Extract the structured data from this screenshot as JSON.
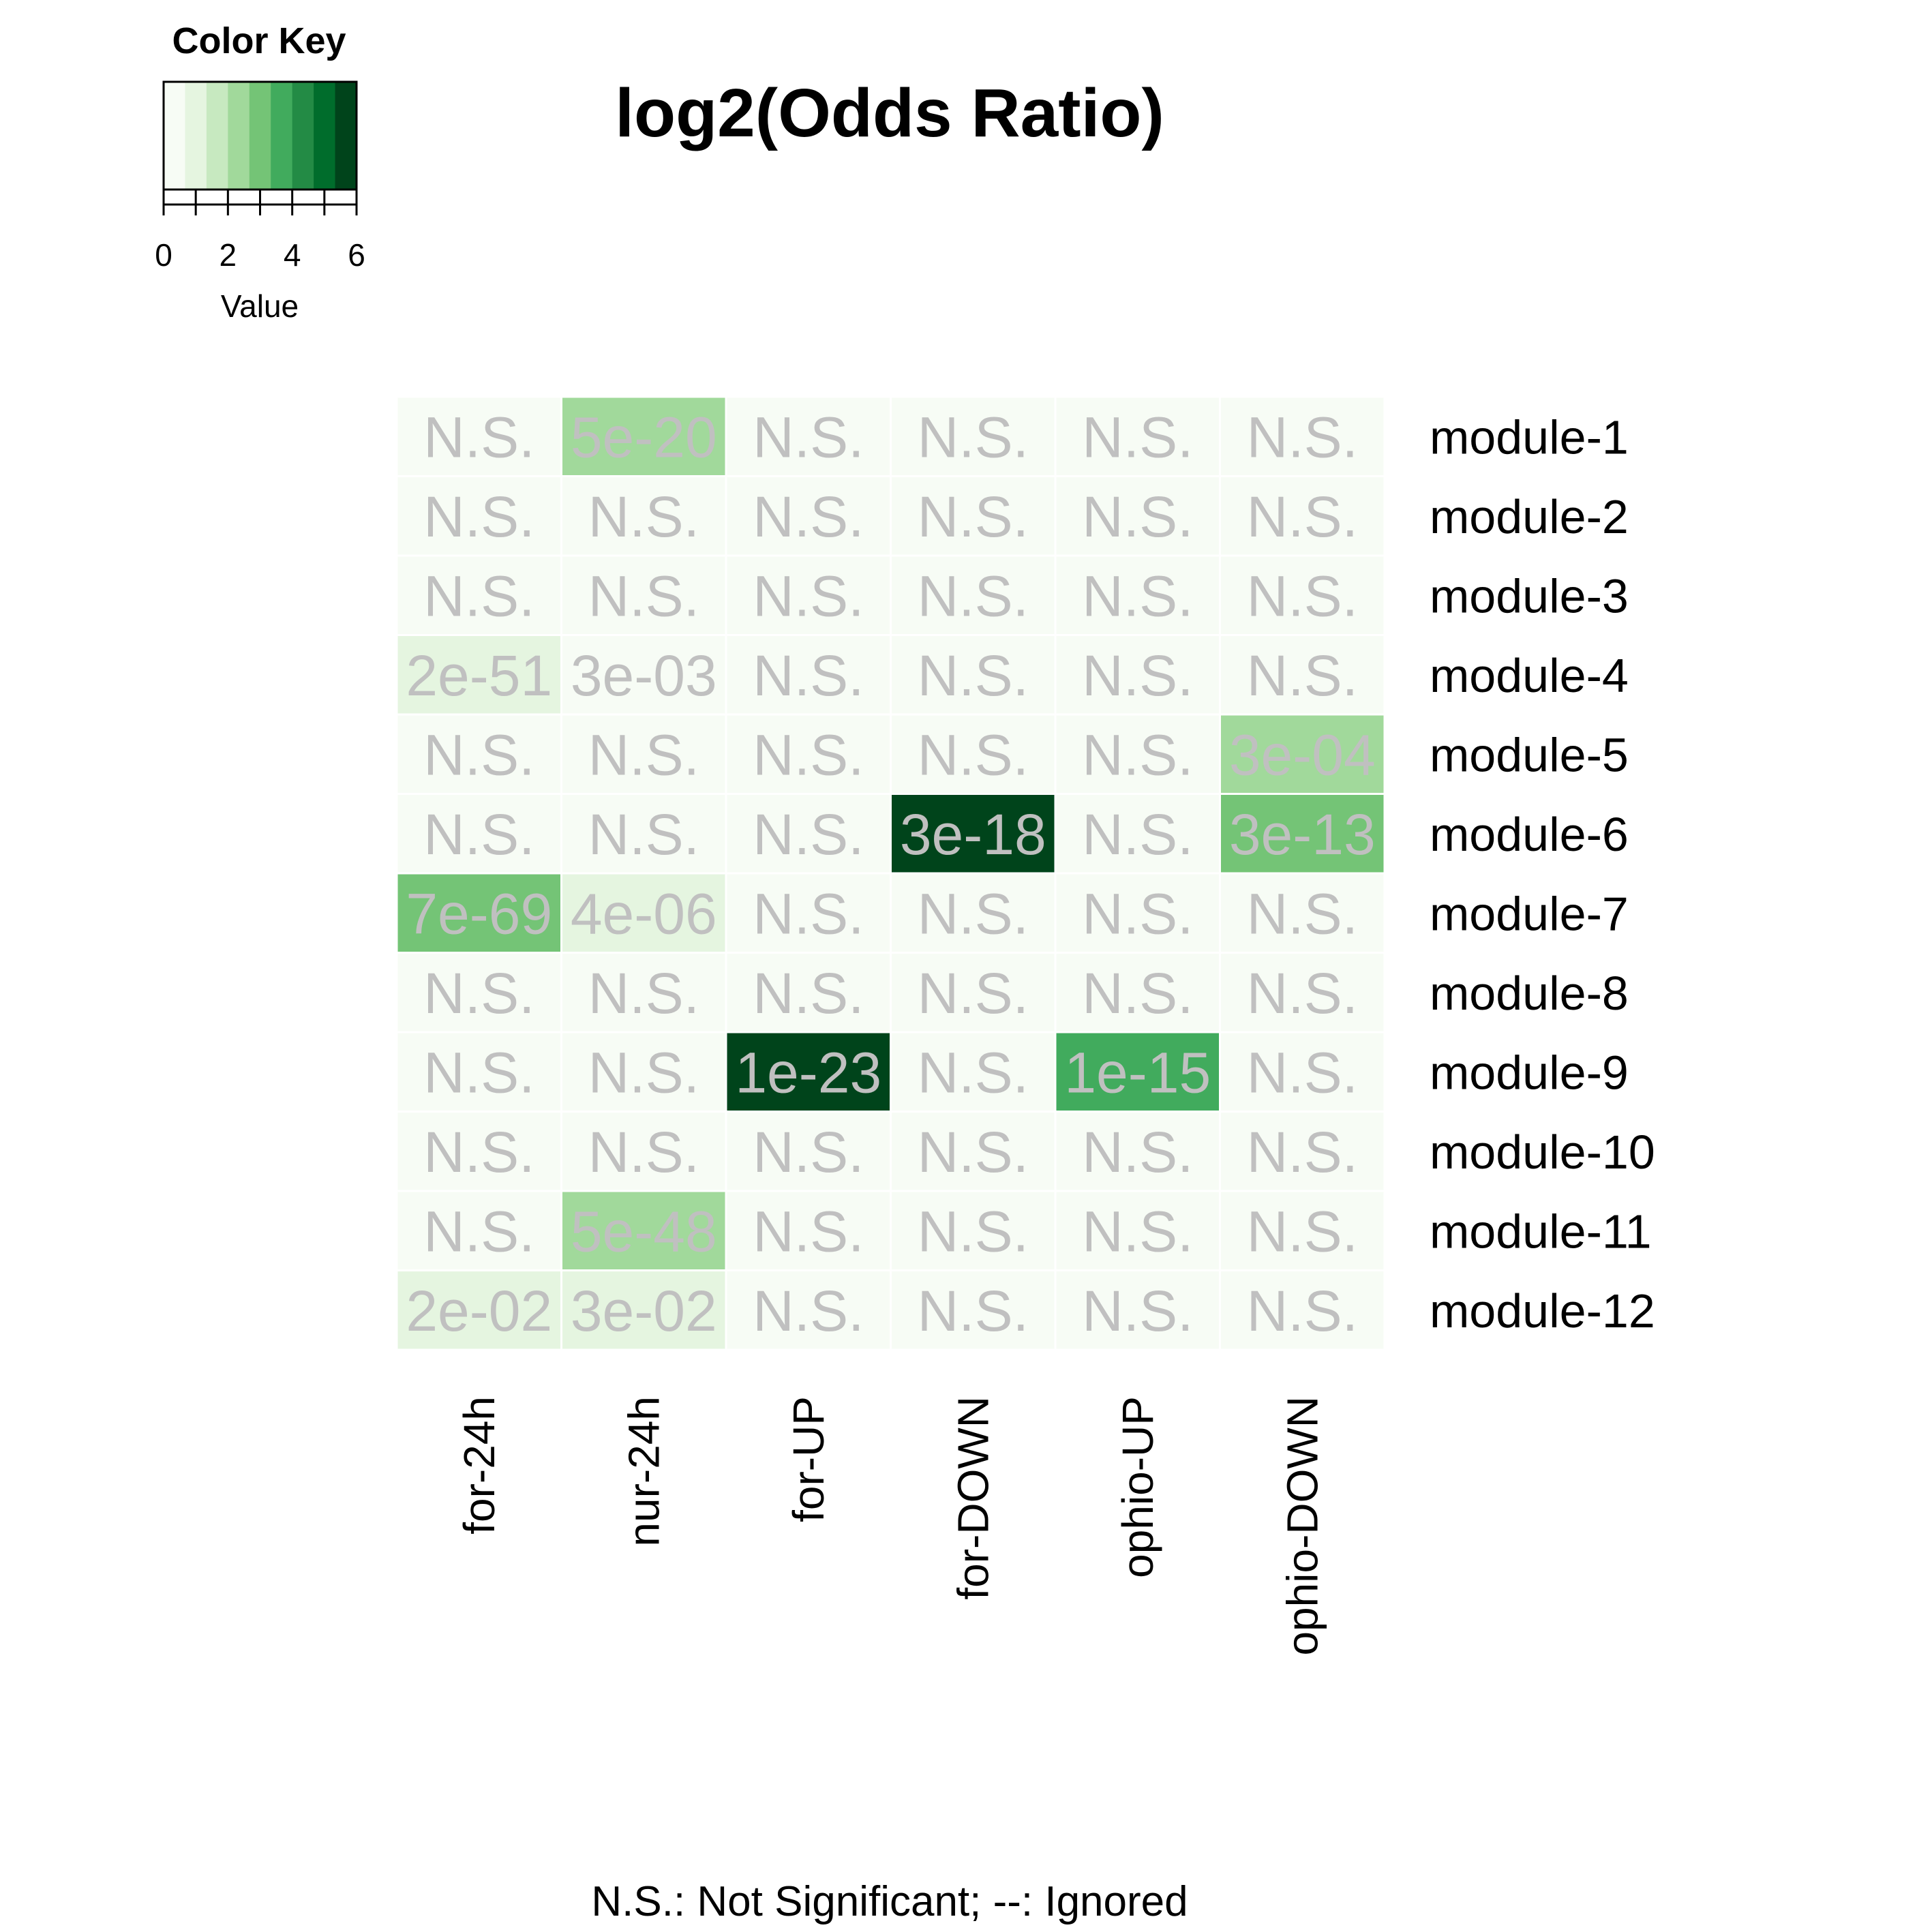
{
  "color_key": {
    "title": "Color Key",
    "axis_label": "Value",
    "ticks": [
      0,
      2,
      4,
      6
    ],
    "range": [
      0,
      6
    ],
    "colors": [
      "#f7fcf5",
      "#e5f5e0",
      "#c7e9c0",
      "#a1d99b",
      "#74c476",
      "#41ab5d",
      "#238b45",
      "#006d2c",
      "#00441b"
    ]
  },
  "chart_data": {
    "type": "heatmap",
    "title": "log2(Odds Ratio)",
    "columns": [
      "for-24h",
      "nur-24h",
      "for-UP",
      "for-DOWN",
      "ophio-UP",
      "ophio-DOWN"
    ],
    "rows": [
      "module-1",
      "module-2",
      "module-3",
      "module-4",
      "module-5",
      "module-6",
      "module-7",
      "module-8",
      "module-9",
      "module-10",
      "module-11",
      "module-12"
    ],
    "values": [
      [
        0.0,
        2.1,
        0.0,
        0.0,
        0.0,
        0.0
      ],
      [
        0.0,
        0.0,
        0.0,
        0.0,
        0.0,
        0.0
      ],
      [
        0.0,
        0.0,
        0.0,
        0.0,
        0.0,
        0.0
      ],
      [
        1.0,
        0.2,
        0.0,
        0.0,
        0.0,
        0.0
      ],
      [
        0.0,
        0.0,
        0.0,
        0.0,
        0.0,
        2.1
      ],
      [
        0.0,
        0.0,
        0.0,
        5.5,
        0.0,
        2.8
      ],
      [
        2.8,
        1.0,
        0.0,
        0.0,
        0.0,
        0.0
      ],
      [
        0.0,
        0.0,
        0.0,
        0.0,
        0.0,
        0.0
      ],
      [
        0.0,
        0.0,
        6.0,
        0.0,
        3.6,
        0.0
      ],
      [
        0.0,
        0.0,
        0.0,
        0.0,
        0.0,
        0.0
      ],
      [
        0.0,
        2.1,
        0.0,
        0.0,
        0.0,
        0.0
      ],
      [
        1.0,
        1.0,
        0.0,
        0.0,
        0.0,
        0.0
      ]
    ],
    "cell_labels": [
      [
        "N.S.",
        "5e-20",
        "N.S.",
        "N.S.",
        "N.S.",
        "N.S."
      ],
      [
        "N.S.",
        "N.S.",
        "N.S.",
        "N.S.",
        "N.S.",
        "N.S."
      ],
      [
        "N.S.",
        "N.S.",
        "N.S.",
        "N.S.",
        "N.S.",
        "N.S."
      ],
      [
        "2e-51",
        "3e-03",
        "N.S.",
        "N.S.",
        "N.S.",
        "N.S."
      ],
      [
        "N.S.",
        "N.S.",
        "N.S.",
        "N.S.",
        "N.S.",
        "3e-04"
      ],
      [
        "N.S.",
        "N.S.",
        "N.S.",
        "3e-18",
        "N.S.",
        "3e-13"
      ],
      [
        "7e-69",
        "4e-06",
        "N.S.",
        "N.S.",
        "N.S.",
        "N.S."
      ],
      [
        "N.S.",
        "N.S.",
        "N.S.",
        "N.S.",
        "N.S.",
        "N.S."
      ],
      [
        "N.S.",
        "N.S.",
        "1e-23",
        "N.S.",
        "1e-15",
        "N.S."
      ],
      [
        "N.S.",
        "N.S.",
        "N.S.",
        "N.S.",
        "N.S.",
        "N.S."
      ],
      [
        "N.S.",
        "5e-48",
        "N.S.",
        "N.S.",
        "N.S.",
        "N.S."
      ],
      [
        "2e-02",
        "3e-02",
        "N.S.",
        "N.S.",
        "N.S.",
        "N.S."
      ]
    ],
    "cell_text_color": "#c0c0c0",
    "footnote": "N.S.: Not Significant; --: Ignored"
  }
}
